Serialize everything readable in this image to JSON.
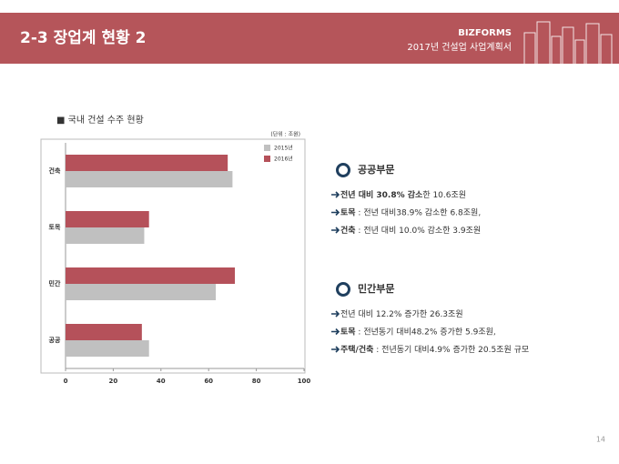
{
  "header": {
    "title": "2-3 장업계 현황 2",
    "brand": "BIZFORMS",
    "subtitle": "2017년 건설업 사업계획서"
  },
  "chart_data": {
    "type": "bar",
    "orientation": "horizontal",
    "title": "■ 국내 건설 수주 현황",
    "unit": "(단위 : 조원)",
    "categories": [
      "건축",
      "토목",
      "민간",
      "공공"
    ],
    "series": [
      {
        "name": "2015년",
        "color": "#c0c0c0",
        "values": [
          70,
          33,
          63,
          35
        ]
      },
      {
        "name": "2016년",
        "color": "#b5515a",
        "values": [
          68,
          35,
          71,
          32
        ]
      }
    ],
    "xlim": [
      0,
      100
    ],
    "xticks": [
      0,
      20,
      40,
      60,
      80,
      100
    ],
    "grid": false
  },
  "sections": [
    {
      "heading": "공공부문",
      "bullets": [
        [
          {
            "text": "전년 대비 30.8% 감소",
            "bold": true
          },
          {
            "text": "한 10.6조원",
            "bold": false
          }
        ],
        [
          {
            "text": "토목",
            "bold": true
          },
          {
            "text": " : 전년 대비38.9% 감소한 6.8조원,",
            "bold": false
          }
        ],
        [
          {
            "text": "건축",
            "bold": true
          },
          {
            "text": " : 전년 대비 10.0% 감소한 3.9조원",
            "bold": false
          }
        ]
      ]
    },
    {
      "heading": "민간부문",
      "bullets": [
        [
          {
            "text": "전년 대비 12.2% 증가한 26.3조원",
            "bold": false
          }
        ],
        [
          {
            "text": "토목",
            "bold": true
          },
          {
            "text": " : 전년동기 대비48.2% 증가한 5.9조원,",
            "bold": false
          }
        ],
        [
          {
            "text": "주택/건축",
            "bold": true
          },
          {
            "text": " : 전년동기 대비4.9% 증가한 20.5조원 규모",
            "bold": false
          }
        ]
      ]
    }
  ],
  "page_number": "14"
}
